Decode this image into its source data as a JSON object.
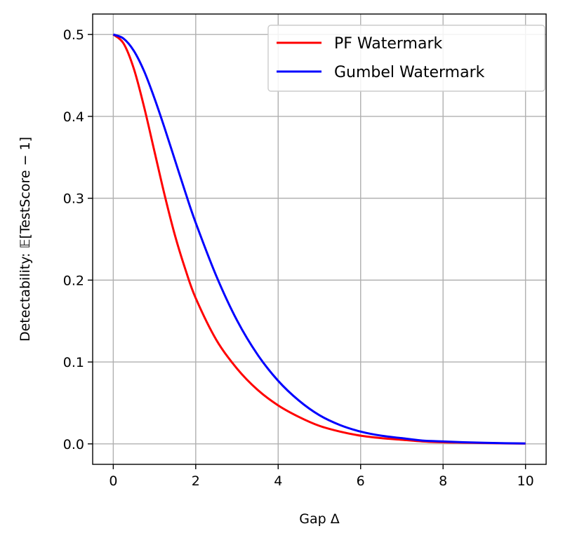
{
  "chart_data": {
    "type": "line",
    "title": "",
    "xlabel": "Gap Δ",
    "ylabel_prefix": "Detectability: ",
    "ylabel_math": "𝔼[TestScore − 1]",
    "xlim": [
      -0.5,
      10.5
    ],
    "ylim": [
      -0.025,
      0.525
    ],
    "xticks": [
      0,
      2,
      4,
      6,
      8,
      10
    ],
    "xtick_labels": [
      "0",
      "2",
      "4",
      "6",
      "8",
      "10"
    ],
    "yticks": [
      0.0,
      0.1,
      0.2,
      0.3,
      0.4,
      0.5
    ],
    "ytick_labels": [
      "0.0",
      "0.1",
      "0.2",
      "0.3",
      "0.4",
      "0.5"
    ],
    "grid": true,
    "legend_position": "top-right",
    "x": [
      0,
      0.25,
      0.5,
      0.75,
      1,
      1.25,
      1.5,
      1.75,
      2,
      2.5,
      3,
      3.5,
      4,
      4.5,
      5,
      5.5,
      6,
      6.5,
      7,
      7.5,
      8,
      8.5,
      9,
      9.5,
      10
    ],
    "series": [
      {
        "name": "PF Watermark",
        "color": "#ff0000",
        "values": [
          0.5,
          0.489,
          0.458,
          0.411,
          0.357,
          0.303,
          0.254,
          0.213,
          0.178,
          0.127,
          0.092,
          0.066,
          0.047,
          0.033,
          0.022,
          0.015,
          0.01,
          0.007,
          0.005,
          0.003,
          0.002,
          0.0015,
          0.001,
          0.0006,
          0.0004
        ]
      },
      {
        "name": "Gumbel Watermark",
        "color": "#0000ff",
        "values": [
          0.5,
          0.495,
          0.48,
          0.455,
          0.422,
          0.385,
          0.346,
          0.307,
          0.27,
          0.205,
          0.151,
          0.109,
          0.077,
          0.053,
          0.035,
          0.023,
          0.015,
          0.01,
          0.007,
          0.004,
          0.003,
          0.002,
          0.0013,
          0.0008,
          0.0005
        ]
      }
    ]
  }
}
